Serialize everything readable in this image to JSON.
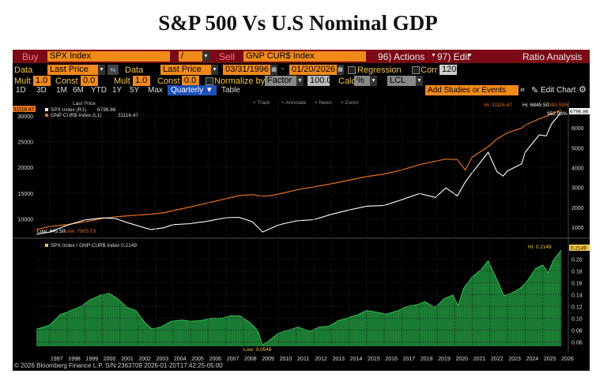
{
  "page_title": "S&P 500 Vs U.S Nominal GDP",
  "toolbar": {
    "buy_label": "Buy",
    "security1": "SPX Index",
    "operator": "/",
    "sell_label": "Sell",
    "security2": "GNP CUR$ Index",
    "actions": "96) Actions",
    "edit": "97) Edit",
    "ratio_analysis": "Ratio Analysis"
  },
  "row2": {
    "data_label1": "Data",
    "data_value1": "Last Price",
    "data_label2": "Data",
    "data_value2": "Last Price",
    "start_date": "03/31/1996",
    "end_date": "01/20/2026",
    "regression": "Regression",
    "corr": "Corr",
    "corr_value": "120"
  },
  "row3": {
    "mult_label1": "Mult",
    "mult_value1": "1.0",
    "const_label1": "Const",
    "const_value1": "0.0",
    "mult_label2": "Mult",
    "mult_value2": "1.0",
    "const_label2": "Const",
    "const_value2": "0.0",
    "normalize": "Normalize by",
    "factor": "Factor",
    "factor_value": "100.0",
    "calc": "Calc",
    "calc_value": "%",
    "lcl": "LCL"
  },
  "row4": {
    "ranges": [
      "1D",
      "3D",
      "1M",
      "6M",
      "YTD",
      "1Y",
      "5Y",
      "Max"
    ],
    "period": "Quarterly",
    "table": "Table",
    "add_studies": "Add Studies or Events",
    "edit_chart": "Edit Chart"
  },
  "upper_panel": {
    "legend_header": "Last Price",
    "series1_label": "SPX Index (R1)",
    "series1_value": "6796.86",
    "series2_label": "GNP CUR$ Index (L1)",
    "series2_value": "31116.47",
    "tools": [
      "Track",
      "Annotate",
      "News",
      "Zoom"
    ],
    "hi_label": "Hi: 31116.47",
    "hi2_label": "Hi: 6845.50",
    "hi_pct": "393.59%",
    "low_label": "Low: 645.50",
    "low2_label": "Low: 7905.73",
    "right_last_tag": "6796.86",
    "right_note": "952.96%",
    "left_last_tag": "31116.47",
    "left_ticks": [
      "10000",
      "15000",
      "20000",
      "25000",
      "30000"
    ],
    "right_ticks": [
      "1000",
      "2000",
      "3000",
      "4000",
      "5000",
      "6000"
    ]
  },
  "lower_panel": {
    "legend": "SPX Index / GNP CUR$ Index 0.2149",
    "hi_label": "Hi: 0.2149",
    "low_label": "Low: 0.0548",
    "last_tag": "0.2149",
    "right_ticks": [
      "0.06",
      "0.08",
      "0.10",
      "0.12",
      "0.14",
      "0.16",
      "0.18",
      "0.20"
    ]
  },
  "x_ticks": [
    "1997",
    "1998",
    "1999",
    "2000",
    "2001",
    "2002",
    "2003",
    "2004",
    "2005",
    "2006",
    "2007",
    "2008",
    "2009",
    "2010",
    "2011",
    "2012",
    "2013",
    "2014",
    "2015",
    "2016",
    "2017",
    "2018",
    "2019",
    "2020",
    "2021",
    "2022",
    "2023",
    "2024",
    "2025",
    "2026"
  ],
  "footer": "© 2026 Bloomberg Finance L.P.  S/N 2363709  2026-01-20T17:42:25-05:00",
  "colors": {
    "spx_line": "#ffffff",
    "gdp_line": "#e8701c",
    "ratio_fill": "#1b7a33",
    "ratio_line": "#31c04a",
    "accent": "#f18a1a",
    "header_red": "#7a0a16"
  },
  "chart_data": [
    {
      "type": "line",
      "title": "",
      "x": [
        1996.25,
        1997,
        1998,
        1999,
        2000,
        2000.75,
        2001.5,
        2002.75,
        2003.5,
        2004,
        2005,
        2006,
        2007,
        2007.75,
        2008.5,
        2009.1,
        2009.5,
        2010,
        2011,
        2012,
        2013,
        2014,
        2015,
        2016,
        2017,
        2018,
        2018.9,
        2019.5,
        2020.15,
        2020.6,
        2021,
        2021.9,
        2022.4,
        2022.75,
        2023,
        2023.8,
        2024,
        2024.8,
        2025.2,
        2025.5,
        2026.05
      ],
      "series": [
        {
          "name": "SPX Index (R1)",
          "axis": "right",
          "values": [
            645.5,
            757,
            1100,
            1370,
            1470,
            1436,
            1210,
            880,
            975,
            1130,
            1180,
            1310,
            1480,
            1500,
            1280,
            760,
            920,
            1120,
            1320,
            1380,
            1650,
            1870,
            2060,
            2100,
            2390,
            2700,
            2500,
            2980,
            2580,
            3280,
            3750,
            4770,
            3800,
            3580,
            3840,
            4190,
            4780,
            5650,
            5600,
            6200,
            6796.86
          ]
        },
        {
          "name": "GNP CUR$ Index (L1)",
          "axis": "left",
          "values": [
            7905.73,
            8500,
            8900,
            9400,
            10100,
            10400,
            10600,
            10900,
            11200,
            11600,
            12300,
            13100,
            13900,
            14500,
            14700,
            14400,
            14500,
            14800,
            15600,
            16200,
            16800,
            17500,
            18200,
            18700,
            19500,
            20500,
            21200,
            21600,
            21500,
            19500,
            22000,
            24000,
            25500,
            26200,
            26700,
            27600,
            28200,
            29400,
            29900,
            30400,
            31116.47
          ]
        }
      ],
      "ylim_left": [
        7000,
        31500
      ],
      "ylim_right": [
        645.5,
        7000
      ]
    },
    {
      "type": "area",
      "title": "",
      "x": [
        1996.25,
        1997,
        1997.6,
        1998.2,
        1998.8,
        1999.3,
        1999.9,
        2000.4,
        2000.9,
        2001.4,
        2001.9,
        2002.4,
        2002.8,
        2003.3,
        2003.9,
        2004.5,
        2005,
        2005.6,
        2006.2,
        2006.8,
        2007.3,
        2007.8,
        2008.4,
        2008.8,
        2009.1,
        2009.5,
        2010,
        2010.6,
        2011.1,
        2011.8,
        2012.3,
        2012.9,
        2013.4,
        2013.9,
        2014.5,
        2015,
        2015.6,
        2016.1,
        2016.7,
        2017.3,
        2017.9,
        2018.3,
        2018.9,
        2019.4,
        2019.9,
        2020.2,
        2020.5,
        2021,
        2021.5,
        2021.9,
        2022.4,
        2022.8,
        2023.2,
        2023.7,
        2024.1,
        2024.6,
        2025.0,
        2025.3,
        2025.6,
        2026.05
      ],
      "series": [
        {
          "name": "SPX Index / GNP CUR$ Index",
          "values": [
            0.0816,
            0.088,
            0.106,
            0.113,
            0.12,
            0.131,
            0.139,
            0.142,
            0.132,
            0.118,
            0.113,
            0.093,
            0.082,
            0.085,
            0.095,
            0.097,
            0.095,
            0.096,
            0.1,
            0.1,
            0.104,
            0.104,
            0.092,
            0.08,
            0.0548,
            0.063,
            0.075,
            0.08,
            0.085,
            0.078,
            0.085,
            0.087,
            0.096,
            0.1,
            0.106,
            0.113,
            0.11,
            0.107,
            0.112,
            0.12,
            0.123,
            0.128,
            0.118,
            0.133,
            0.139,
            0.121,
            0.15,
            0.17,
            0.182,
            0.197,
            0.165,
            0.138,
            0.142,
            0.15,
            0.162,
            0.184,
            0.19,
            0.177,
            0.198,
            0.2149
          ]
        }
      ],
      "ylim": [
        0.05,
        0.215
      ]
    }
  ]
}
